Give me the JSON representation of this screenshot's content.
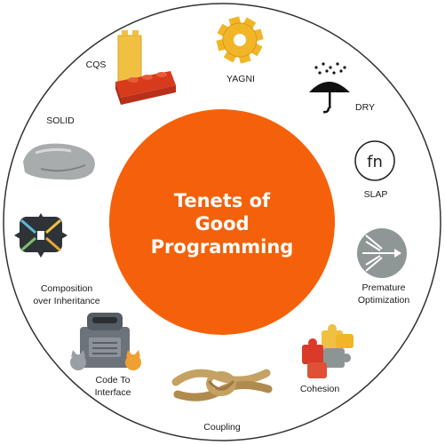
{
  "title": {
    "line1": "Tenets of",
    "line2": "Good",
    "line3": "Programming"
  },
  "colors": {
    "center_fill": "#f4610a",
    "outer_ring": "#333333",
    "lego": "#d83a1c",
    "lego_yellow": "#f0c043",
    "gear": "#f2b528"
  },
  "items": {
    "cqs": {
      "label": "CQS",
      "icon": "lego-bricks-icon"
    },
    "yagni": {
      "label": "YAGNI",
      "icon": "gear-icon"
    },
    "dry": {
      "label": "DRY",
      "icon": "umbrella-rain-icon"
    },
    "slap": {
      "label": "SLAP",
      "icon": "fn-icon",
      "icon_text": "fn"
    },
    "premature": {
      "line1": "Premature",
      "line2": "Optimization",
      "icon": "branching-arrows-icon"
    },
    "cohesion": {
      "label": "Cohesion",
      "icon": "puzzle-pieces-icon"
    },
    "coupling": {
      "label": "Coupling",
      "icon": "rope-knot-icon"
    },
    "code_to_interface": {
      "line1": "Code To",
      "line2": "Interface",
      "icon": "robot-cats-icon"
    },
    "composition": {
      "line1": "Composition",
      "line2": "over Inheritance",
      "icon": "composition-arrows-icon"
    },
    "solid": {
      "label": "SOLID",
      "icon": "rock-icon"
    }
  }
}
